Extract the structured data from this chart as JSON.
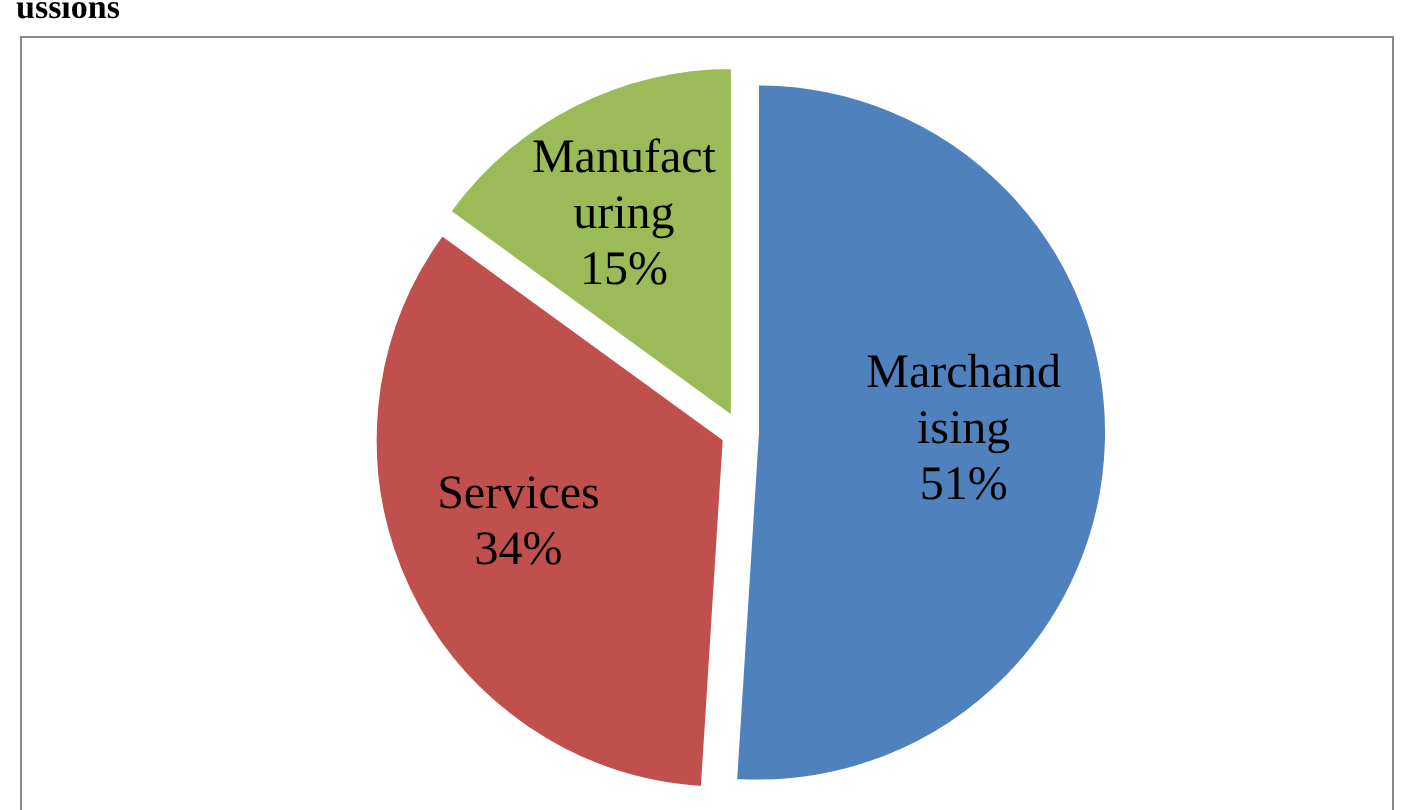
{
  "chart_data": {
    "type": "pie",
    "title": "ussions",
    "categories": [
      "Marchandising",
      "Services",
      "Manufacturing"
    ],
    "values": [
      51,
      34,
      15
    ],
    "colors": [
      "#4f81bd",
      "#c0504d",
      "#9bbb59"
    ],
    "value_labels": [
      "51%",
      "34%",
      "15%"
    ],
    "legend": false
  }
}
